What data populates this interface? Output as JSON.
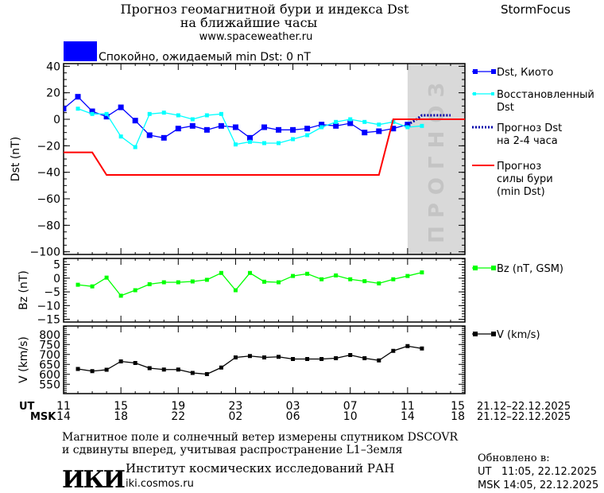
{
  "header": {
    "title_line1": "Прогноз геомагнитной бури и индекса Dst",
    "title_line2": "на ближайшие часы",
    "url": "www.spaceweather.ru",
    "brand": "StormFocus",
    "status_text": "Спокойно, ожидаемый min Dst: 0 nT",
    "status_color": "#0000ff"
  },
  "forecast_zone_label": "ПРОГНОЗ",
  "x_axis": {
    "ut_label": "UT",
    "msk_label": "MSK",
    "ut_ticks": [
      "11",
      "15",
      "19",
      "23",
      "03",
      "07",
      "11",
      "15"
    ],
    "msk_ticks": [
      "14",
      "18",
      "22",
      "02",
      "06",
      "10",
      "14",
      "18"
    ],
    "date_range": "21.12–22.12.2025"
  },
  "footer": {
    "note_line1": "Магнитное поле и солнечный ветер измерены спутником DSCOVR",
    "note_line2": "и сдвинуты вперед, учитывая распространение L1–Земля",
    "institute": "Институт космических исследований РАН",
    "institute_url": "iki.cosmos.ru",
    "logo_text": "ИКИ",
    "updated_label": "Обновлено в:",
    "updated_ut": "UT   11:05, 22.12.2025",
    "updated_msk": "MSK 14:05, 22.12.2025"
  },
  "chart_data": [
    {
      "type": "line",
      "ylabel": "Dst (nT)",
      "ylim": [
        -102,
        42
      ],
      "yticks": [
        "40",
        "20",
        "0",
        "−20",
        "−40",
        "−60",
        "−80",
        "−100"
      ],
      "ytick_values": [
        40,
        20,
        0,
        -20,
        -40,
        -60,
        -80,
        -100
      ],
      "forecast_region": [
        "22.12 11:00",
        "22.12 15:00"
      ],
      "series": [
        {
          "name": "Dst, Киото",
          "color": "#0000ff",
          "style": "line-square-large",
          "x": [
            "21.12 11:00",
            "21.12 12:00",
            "21.12 13:00",
            "21.12 14:00",
            "21.12 15:00",
            "21.12 16:00",
            "21.12 17:00",
            "21.12 18:00",
            "21.12 19:00",
            "21.12 20:00",
            "21.12 21:00",
            "21.12 22:00",
            "21.12 23:00",
            "22.12 00:00",
            "22.12 01:00",
            "22.12 02:00",
            "22.12 03:00",
            "22.12 04:00",
            "22.12 05:00",
            "22.12 06:00",
            "22.12 07:00",
            "22.12 08:00",
            "22.12 09:00",
            "22.12 10:00",
            "22.12 11:00"
          ],
          "y": [
            8,
            17,
            6,
            2,
            9,
            -1,
            -12,
            -14,
            -7,
            -5,
            -8,
            -5,
            -6,
            -14,
            -6,
            -8,
            -8,
            -7,
            -4,
            -5,
            -3,
            -10,
            -9,
            -7,
            -4
          ]
        },
        {
          "name": "Восстановленный Dst",
          "color": "#00ffff",
          "style": "line-square-small",
          "x": [
            "21.12 12:00",
            "21.12 13:00",
            "21.12 14:00",
            "21.12 15:00",
            "21.12 16:00",
            "21.12 17:00",
            "21.12 18:00",
            "21.12 19:00",
            "21.12 20:00",
            "21.12 21:00",
            "21.12 22:00",
            "21.12 23:00",
            "22.12 00:00",
            "22.12 01:00",
            "22.12 02:00",
            "22.12 03:00",
            "22.12 04:00",
            "22.12 05:00",
            "22.12 06:00",
            "22.12 07:00",
            "22.12 08:00",
            "22.12 09:00",
            "22.12 10:00",
            "22.12 11:00",
            "22.12 12:00"
          ],
          "y": [
            8,
            4,
            4,
            -13,
            -21,
            4,
            5,
            3,
            0,
            3,
            4,
            -19,
            -17,
            -18,
            -18,
            -15,
            -12,
            -6,
            -2,
            0,
            -2,
            -4,
            -2,
            -6,
            -5
          ]
        },
        {
          "name": "Прогноз Dst на 2-4 часа",
          "color": "#0000aa",
          "style": "dotted",
          "x": [
            "22.12 11:00",
            "22.12 11:30",
            "22.12 12:00",
            "22.12 14:00"
          ],
          "y": [
            -4,
            -1,
            3,
            3
          ]
        },
        {
          "name": "Прогноз силы бури (min Dst)",
          "color": "#ff0000",
          "style": "line",
          "x": [
            "21.12 11:00",
            "21.12 13:00",
            "21.12 14:00",
            "22.12 09:00",
            "22.12 10:00",
            "22.12 15:00"
          ],
          "y": [
            -25,
            -25,
            -42,
            -42,
            0,
            0
          ]
        }
      ]
    },
    {
      "type": "line",
      "ylabel": "Bz (nT)",
      "ylim": [
        -16,
        7.2
      ],
      "yticks": [
        "5",
        "0",
        "−5",
        "−10",
        "−15"
      ],
      "ytick_values": [
        5,
        0,
        -5,
        -10,
        -15
      ],
      "series": [
        {
          "name": "Bz (nT, GSM)",
          "color": "#00ff00",
          "x": [
            "21.12 12:00",
            "21.12 13:00",
            "21.12 14:00",
            "21.12 15:00",
            "21.12 16:00",
            "21.12 17:00",
            "21.12 18:00",
            "21.12 19:00",
            "21.12 20:00",
            "21.12 21:00",
            "21.12 22:00",
            "21.12 23:00",
            "22.12 00:00",
            "22.12 01:00",
            "22.12 02:00",
            "22.12 03:00",
            "22.12 04:00",
            "22.12 05:00",
            "22.12 06:00",
            "22.12 07:00",
            "22.12 08:00",
            "22.12 09:00",
            "22.12 10:00",
            "22.12 11:00",
            "22.12 12:00"
          ],
          "y": [
            -2.4,
            -3,
            0.2,
            -6.4,
            -4.4,
            -2.2,
            -1.5,
            -1.5,
            -1.2,
            -0.6,
            1.9,
            -4.4,
            1.9,
            -1.3,
            -1.5,
            0.8,
            1.6,
            -0.4,
            1.0,
            -0.4,
            -1.1,
            -1.9,
            -0.4,
            0.8,
            2.1
          ]
        }
      ]
    },
    {
      "type": "line",
      "ylabel": "V (km/s)",
      "ylim": [
        503,
        843
      ],
      "yticks": [
        "800",
        "750",
        "700",
        "650",
        "600",
        "550"
      ],
      "ytick_values": [
        800,
        750,
        700,
        650,
        600,
        550
      ],
      "series": [
        {
          "name": "V (km/s)",
          "color": "#000000",
          "x": [
            "21.12 12:00",
            "21.12 13:00",
            "21.12 14:00",
            "21.12 15:00",
            "21.12 16:00",
            "21.12 17:00",
            "21.12 18:00",
            "21.12 19:00",
            "21.12 20:00",
            "21.12 21:00",
            "21.12 22:00",
            "21.12 23:00",
            "22.12 00:00",
            "22.12 01:00",
            "22.12 02:00",
            "22.12 03:00",
            "22.12 04:00",
            "22.12 05:00",
            "22.12 06:00",
            "22.12 07:00",
            "22.12 08:00",
            "22.12 09:00",
            "22.12 10:00",
            "22.12 11:00",
            "22.12 12:00"
          ],
          "y": [
            627,
            616,
            623,
            665,
            657,
            631,
            624,
            624,
            607,
            601,
            634,
            685,
            692,
            685,
            688,
            677,
            677,
            677,
            681,
            697,
            681,
            670,
            718,
            742,
            730
          ]
        }
      ]
    }
  ]
}
